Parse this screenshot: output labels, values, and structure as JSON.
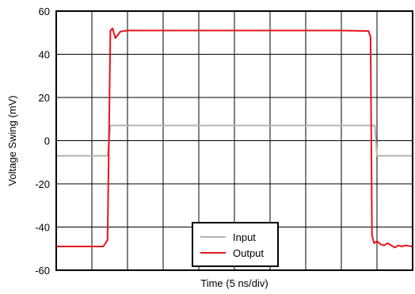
{
  "chart_data": {
    "type": "line",
    "title": "",
    "xlabel": "Time (5 ns/div)",
    "ylabel": "Voltage Swing (mV)",
    "xlim": [
      0,
      50
    ],
    "ylim": [
      -60,
      60
    ],
    "x_divisions": 10,
    "y_ticks": [
      60,
      40,
      20,
      0,
      -20,
      -40,
      -60
    ],
    "y_tick_labels": [
      "60",
      "40",
      "20",
      "0",
      "-20",
      "-40",
      "-60"
    ],
    "grid": true,
    "legend": "bottom-center",
    "series": [
      {
        "name": "Input",
        "color": "#b4b4b4",
        "x": [
          0,
          6.0,
          7.2,
          7.6,
          8.0,
          30,
          44.3,
          44.7,
          45.0,
          45.5,
          50
        ],
        "y": [
          -7,
          -7,
          -7,
          7,
          7,
          7,
          7,
          7,
          -7,
          -7,
          -7
        ]
      },
      {
        "name": "Output",
        "color": "#e8141c",
        "x": [
          0,
          6.0,
          6.6,
          7.2,
          7.6,
          7.9,
          8.3,
          9.0,
          10.0,
          15.0,
          20.0,
          25.0,
          30.0,
          35.0,
          40.0,
          43.8,
          44.1,
          44.3,
          44.6,
          45.0,
          45.5,
          46.0,
          46.5,
          47.0,
          47.5,
          48.0,
          48.5,
          49.0,
          50.0
        ],
        "y": [
          -49,
          -49,
          -49,
          -46,
          51,
          52,
          47.5,
          50.5,
          51,
          51,
          51,
          51,
          51,
          51,
          51,
          50.8,
          48,
          -44,
          -47.5,
          -46.5,
          -48,
          -48.5,
          -47.5,
          -48.5,
          -49.5,
          -48.5,
          -49,
          -48.5,
          -49
        ]
      }
    ]
  }
}
